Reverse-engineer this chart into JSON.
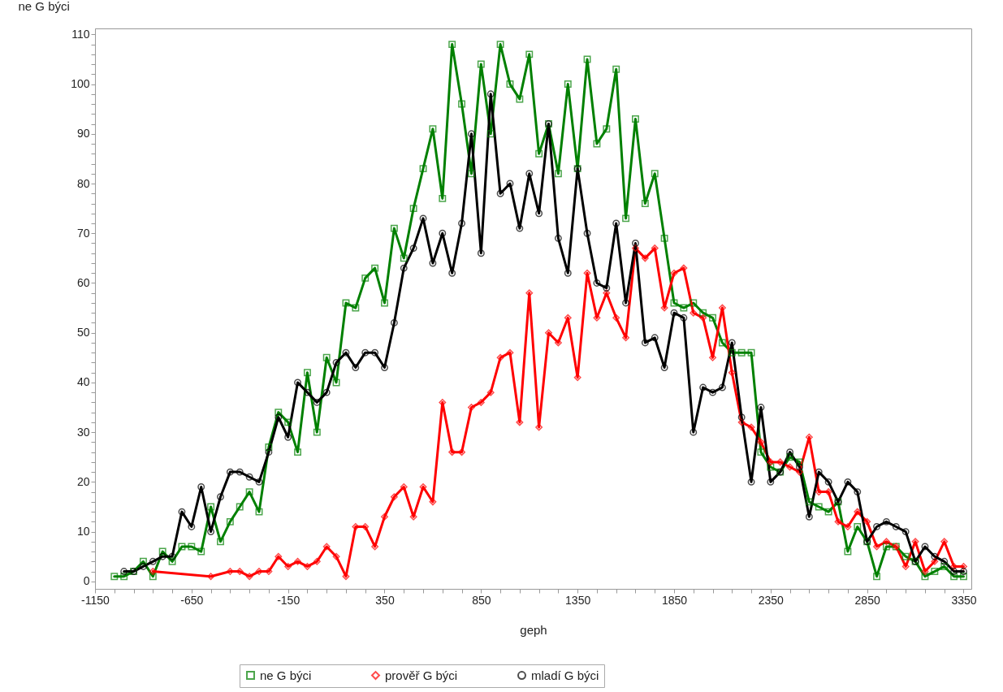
{
  "chart_data": {
    "type": "line",
    "xlabel": "geph",
    "ylabel": "ne G býci",
    "legend": "bottom",
    "line_style": "solid",
    "xlim": [
      -1150,
      3390
    ],
    "ylim": [
      -1.5,
      111.2
    ],
    "xticks": [
      -1150,
      {
        "value": -1050,
        "label": null
      },
      {
        "value": -950,
        "label": null
      },
      {
        "value": -850,
        "label": null
      },
      {
        "value": -750,
        "label": null
      },
      -650,
      {
        "value": -550,
        "label": null
      },
      {
        "value": -450,
        "label": null
      },
      {
        "value": -350,
        "label": null
      },
      {
        "value": -250,
        "label": null
      },
      -150,
      {
        "value": -50,
        "label": null
      },
      {
        "value": 50,
        "label": null
      },
      {
        "value": 150,
        "label": null
      },
      {
        "value": 250,
        "label": null
      },
      350,
      {
        "value": 450,
        "label": null
      },
      {
        "value": 550,
        "label": null
      },
      {
        "value": 650,
        "label": null
      },
      {
        "value": 750,
        "label": null
      },
      850,
      {
        "value": 950,
        "label": null
      },
      {
        "value": 1050,
        "label": null
      },
      {
        "value": 1150,
        "label": null
      },
      {
        "value": 1250,
        "label": null
      },
      1350,
      {
        "value": 1450,
        "label": null
      },
      {
        "value": 1550,
        "label": null
      },
      {
        "value": 1650,
        "label": null
      },
      {
        "value": 1750,
        "label": null
      },
      1850,
      {
        "value": 1950,
        "label": null
      },
      {
        "value": 2050,
        "label": null
      },
      {
        "value": 2150,
        "label": null
      },
      {
        "value": 2250,
        "label": null
      },
      2350,
      {
        "value": 2450,
        "label": null
      },
      {
        "value": 2550,
        "label": null
      },
      {
        "value": 2650,
        "label": null
      },
      {
        "value": 2750,
        "label": null
      },
      2850,
      {
        "value": 2950,
        "label": null
      },
      {
        "value": 3050,
        "label": null
      },
      {
        "value": 3150,
        "label": null
      },
      {
        "value": 3250,
        "label": null
      },
      3350
    ],
    "yticks": [
      0,
      {
        "value": 2,
        "label": null
      },
      {
        "value": 4,
        "label": null
      },
      {
        "value": 6,
        "label": null
      },
      {
        "value": 8,
        "label": null
      },
      10,
      {
        "value": 12,
        "label": null
      },
      {
        "value": 14,
        "label": null
      },
      {
        "value": 16,
        "label": null
      },
      {
        "value": 18,
        "label": null
      },
      20,
      {
        "value": 22,
        "label": null
      },
      {
        "value": 24,
        "label": null
      },
      {
        "value": 26,
        "label": null
      },
      {
        "value": 28,
        "label": null
      },
      30,
      {
        "value": 32,
        "label": null
      },
      {
        "value": 34,
        "label": null
      },
      {
        "value": 36,
        "label": null
      },
      {
        "value": 38,
        "label": null
      },
      40,
      {
        "value": 42,
        "label": null
      },
      {
        "value": 44,
        "label": null
      },
      {
        "value": 46,
        "label": null
      },
      {
        "value": 48,
        "label": null
      },
      50,
      {
        "value": 52,
        "label": null
      },
      {
        "value": 54,
        "label": null
      },
      {
        "value": 56,
        "label": null
      },
      {
        "value": 58,
        "label": null
      },
      60,
      {
        "value": 62,
        "label": null
      },
      {
        "value": 64,
        "label": null
      },
      {
        "value": 66,
        "label": null
      },
      {
        "value": 68,
        "label": null
      },
      70,
      {
        "value": 72,
        "label": null
      },
      {
        "value": 74,
        "label": null
      },
      {
        "value": 76,
        "label": null
      },
      {
        "value": 78,
        "label": null
      },
      80,
      {
        "value": 82,
        "label": null
      },
      {
        "value": 84,
        "label": null
      },
      {
        "value": 86,
        "label": null
      },
      {
        "value": 88,
        "label": null
      },
      90,
      {
        "value": 92,
        "label": null
      },
      {
        "value": 94,
        "label": null
      },
      {
        "value": 96,
        "label": null
      },
      {
        "value": 98,
        "label": null
      },
      100,
      {
        "value": 102,
        "label": null
      },
      {
        "value": 104,
        "label": null
      },
      {
        "value": 106,
        "label": null
      },
      {
        "value": 108,
        "label": null
      },
      110
    ],
    "series": [
      {
        "name": "ne G býci",
        "color": "#008000",
        "marker": "square",
        "x": [
          -1050,
          -1000,
          -950,
          -900,
          -850,
          -800,
          -750,
          -700,
          -650,
          -600,
          -550,
          -500,
          -450,
          -400,
          -350,
          -300,
          -250,
          -200,
          -150,
          -100,
          -50,
          0,
          50,
          100,
          150,
          200,
          250,
          300,
          350,
          400,
          450,
          500,
          550,
          600,
          650,
          700,
          750,
          800,
          850,
          900,
          950,
          1000,
          1050,
          1100,
          1150,
          1200,
          1250,
          1300,
          1350,
          1400,
          1450,
          1500,
          1550,
          1600,
          1650,
          1700,
          1750,
          1800,
          1850,
          1900,
          1950,
          2000,
          2050,
          2100,
          2150,
          2200,
          2250,
          2300,
          2350,
          2400,
          2450,
          2500,
          2550,
          2600,
          2650,
          2700,
          2750,
          2800,
          2850,
          2900,
          2950,
          3000,
          3050,
          3100,
          3150,
          3200,
          3250,
          3300,
          3350
        ],
        "values": [
          1,
          1,
          2,
          4,
          1,
          6,
          4,
          7,
          7,
          6,
          15,
          8,
          12,
          15,
          18,
          14,
          27,
          34,
          32,
          26,
          42,
          30,
          45,
          40,
          56,
          55,
          61,
          63,
          56,
          71,
          65,
          75,
          83,
          91,
          77,
          108,
          96,
          82,
          104,
          90,
          108,
          100,
          97,
          106,
          86,
          92,
          82,
          100,
          83,
          105,
          88,
          91,
          103,
          73,
          93,
          76,
          82,
          69,
          56,
          55,
          56,
          54,
          53,
          48,
          46,
          46,
          46,
          26,
          23,
          22,
          25,
          24,
          16,
          15,
          14,
          16,
          6,
          11,
          8,
          1,
          7,
          7,
          5,
          4,
          1,
          2,
          3,
          1,
          1
        ]
      },
      {
        "name": "prověř G býci",
        "color": "#ff0000",
        "marker": "diamond",
        "x": [
          -850,
          -550,
          -450,
          -400,
          -350,
          -300,
          -250,
          -200,
          -150,
          -100,
          -50,
          0,
          50,
          100,
          150,
          200,
          250,
          300,
          350,
          400,
          450,
          500,
          550,
          600,
          650,
          700,
          750,
          800,
          850,
          900,
          950,
          1000,
          1050,
          1100,
          1150,
          1200,
          1250,
          1300,
          1350,
          1400,
          1450,
          1500,
          1550,
          1600,
          1650,
          1700,
          1750,
          1800,
          1850,
          1900,
          1950,
          2000,
          2050,
          2100,
          2150,
          2200,
          2250,
          2300,
          2350,
          2400,
          2450,
          2500,
          2550,
          2600,
          2650,
          2700,
          2750,
          2800,
          2850,
          2900,
          2950,
          3000,
          3050,
          3100,
          3150,
          3200,
          3250,
          3300,
          3350
        ],
        "values": [
          2,
          1,
          2,
          2,
          1,
          2,
          2,
          5,
          3,
          4,
          3,
          4,
          7,
          5,
          1,
          11,
          11,
          7,
          13,
          17,
          19,
          13,
          19,
          16,
          36,
          26,
          26,
          35,
          36,
          38,
          45,
          46,
          32,
          58,
          31,
          50,
          48,
          53,
          41,
          62,
          53,
          58,
          53,
          49,
          67,
          65,
          67,
          55,
          62,
          63,
          54,
          53,
          45,
          55,
          42,
          32,
          31,
          28,
          24,
          24,
          23,
          22,
          29,
          18,
          18,
          12,
          11,
          14,
          12,
          7,
          8,
          7,
          3,
          8,
          2,
          4,
          8,
          3,
          3
        ]
      },
      {
        "name": "mladí G býci",
        "color": "#000000",
        "marker": "circle",
        "x": [
          -1000,
          -950,
          -900,
          -850,
          -800,
          -750,
          -700,
          -650,
          -600,
          -550,
          -500,
          -450,
          -400,
          -350,
          -300,
          -250,
          -200,
          -150,
          -100,
          -50,
          0,
          50,
          100,
          150,
          200,
          250,
          300,
          350,
          400,
          450,
          500,
          550,
          600,
          650,
          700,
          750,
          800,
          850,
          900,
          950,
          1000,
          1050,
          1100,
          1150,
          1200,
          1250,
          1300,
          1350,
          1400,
          1450,
          1500,
          1550,
          1600,
          1650,
          1700,
          1750,
          1800,
          1850,
          1900,
          1950,
          2000,
          2050,
          2100,
          2150,
          2200,
          2250,
          2300,
          2350,
          2400,
          2450,
          2500,
          2550,
          2600,
          2650,
          2700,
          2750,
          2800,
          2850,
          2900,
          2950,
          3000,
          3050,
          3100,
          3150,
          3200,
          3250,
          3300,
          3350
        ],
        "values": [
          2,
          2,
          3,
          4,
          5,
          5,
          14,
          11,
          19,
          10,
          17,
          22,
          22,
          21,
          20,
          26,
          33,
          29,
          40,
          38,
          36,
          38,
          44,
          46,
          43,
          46,
          46,
          43,
          52,
          63,
          67,
          73,
          64,
          70,
          62,
          72,
          90,
          66,
          98,
          78,
          80,
          71,
          82,
          74,
          92,
          69,
          62,
          83,
          70,
          60,
          59,
          72,
          56,
          68,
          48,
          49,
          43,
          54,
          53,
          30,
          39,
          38,
          39,
          48,
          33,
          20,
          35,
          20,
          22,
          26,
          23,
          13,
          22,
          20,
          16,
          20,
          18,
          8,
          11,
          12,
          11,
          10,
          4,
          7,
          5,
          4,
          2,
          2
        ]
      }
    ]
  }
}
